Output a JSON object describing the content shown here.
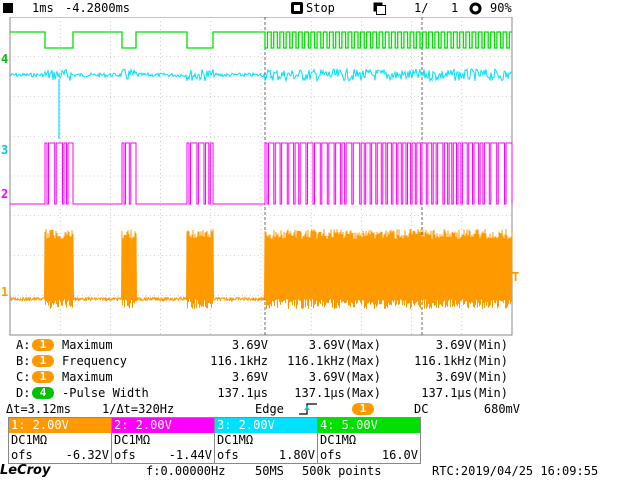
{
  "topbar": {
    "timebase": "1ms",
    "delay": "-4.2800ms",
    "run_state": "Stop",
    "page": "1/",
    "page_total": "1",
    "brightness": "90%"
  },
  "channel_markers": [
    "4",
    "3",
    "2",
    "1"
  ],
  "trigger_marker": "T",
  "colors": {
    "ch1": "#ff9900",
    "ch2": "#ff00ff",
    "ch3": "#00e0ff",
    "ch4": "#00e000",
    "grid": "#aaaaaa"
  },
  "measurements": [
    {
      "slot": "A:",
      "chan": "1",
      "chan_color": "#ff9900",
      "name": "Maximum",
      "value": "3.69V",
      "max": "3.69V(Max)",
      "min": "3.69V(Min)"
    },
    {
      "slot": "B:",
      "chan": "1",
      "chan_color": "#ff9900",
      "name": "Frequency",
      "value": "116.1kHz",
      "max": "116.1kHz(Max)",
      "min": "116.1kHz(Min)"
    },
    {
      "slot": "C:",
      "chan": "1",
      "chan_color": "#ff9900",
      "name": "Maximum",
      "value": "3.69V",
      "max": "3.69V(Max)",
      "min": "3.69V(Min)"
    },
    {
      "slot": "D:",
      "chan": "4",
      "chan_color": "#00c000",
      "name": "-Pulse Width",
      "value": "137.1μs",
      "max": "137.1μs(Max)",
      "min": "137.1μs(Min)"
    }
  ],
  "cursor": {
    "delta_t": "Δt=3.12ms",
    "inv_delta_t": "1/Δt=320Hz",
    "trigger_type": "Edge",
    "trigger_source": "1",
    "coupling": "DC",
    "level": "680mV"
  },
  "channels": [
    {
      "header": "1: 2.00V",
      "color": "#ff9900",
      "impedance": "DC1MΩ",
      "ofs_label": "ofs",
      "ofs_value": "-6.32V"
    },
    {
      "header": "2: 2.00V",
      "color": "#ff00ff",
      "impedance": "DC1MΩ",
      "ofs_label": "ofs",
      "ofs_value": "-1.44V"
    },
    {
      "header": "3: 2.00V",
      "color": "#00e0ff",
      "impedance": "DC1MΩ",
      "ofs_label": "ofs",
      "ofs_value": "1.80V"
    },
    {
      "header": "4: 5.00V",
      "color": "#00e000",
      "impedance": "DC1MΩ",
      "ofs_label": "ofs",
      "ofs_value": "16.0V"
    }
  ],
  "bottombar": {
    "logo": "LeCroy",
    "freq": "f:0.00000Hz",
    "sample_rate": "50MS",
    "points": "500k points",
    "rtc": "RTC:2019/04/25 16:09:55"
  }
}
